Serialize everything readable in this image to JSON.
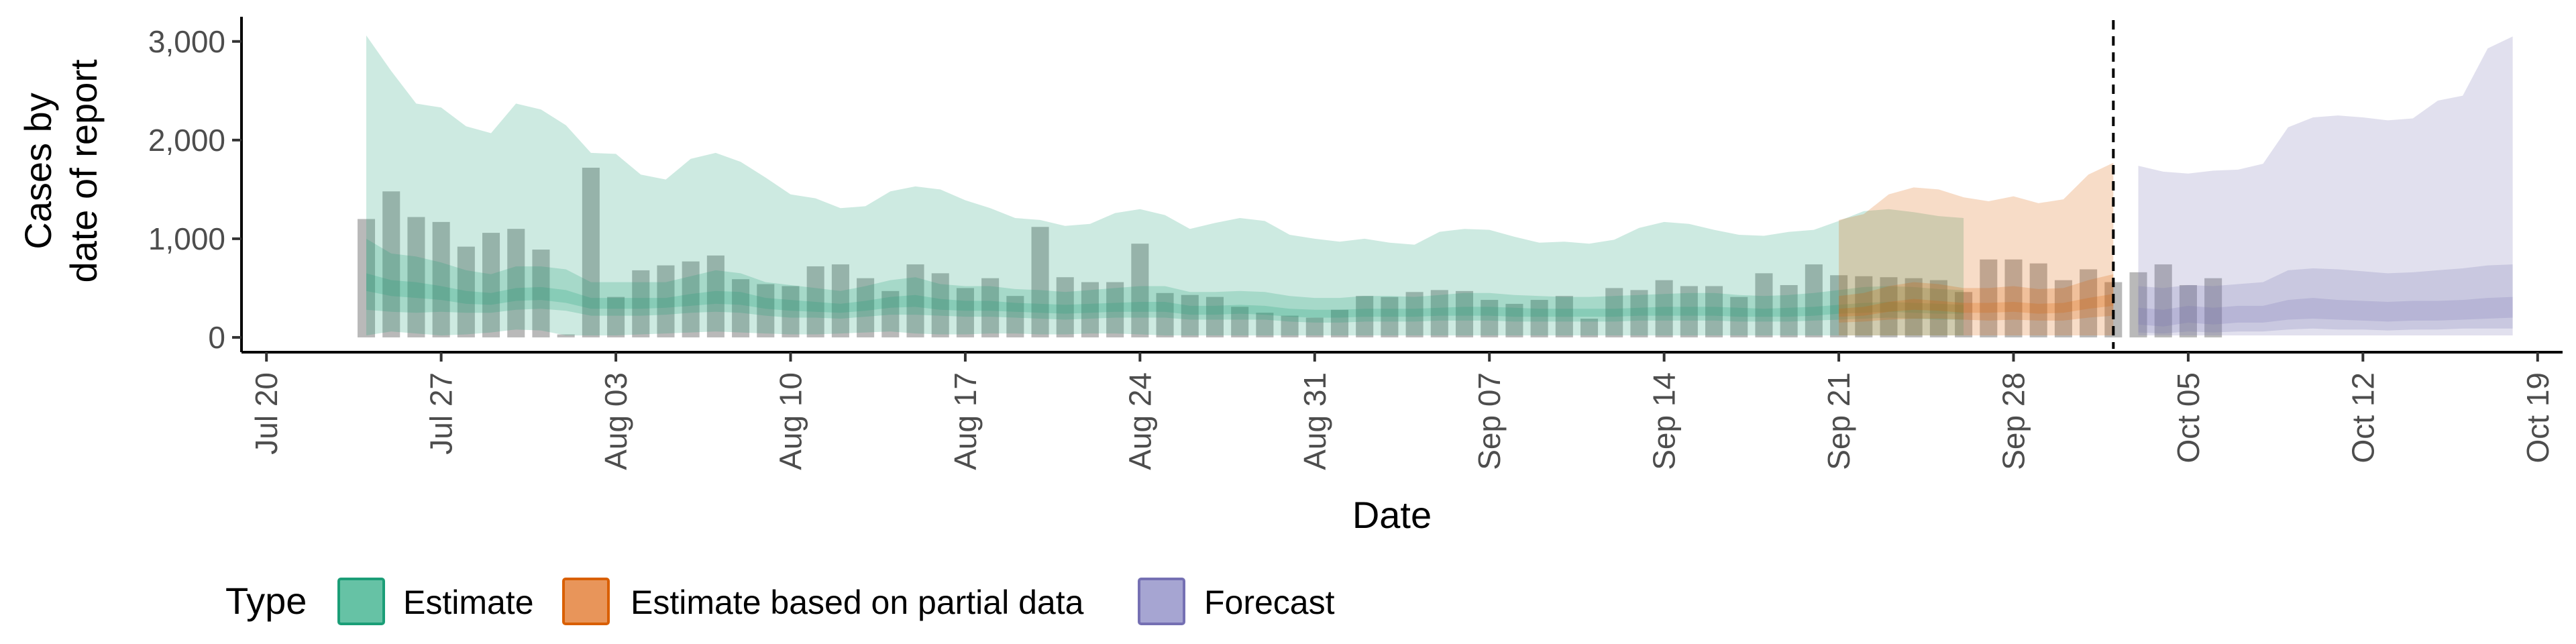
{
  "chart_data": {
    "type": "area",
    "xlabel": "Date",
    "ylabel_lines": [
      "Cases by",
      "date of report"
    ],
    "ylim": [
      -150,
      3250
    ],
    "xlim": [
      "2020-07-19",
      "2020-10-20"
    ],
    "y_ticks": [
      0,
      1000,
      2000,
      3000
    ],
    "y_tick_labels": [
      "0",
      "1,000",
      "2,000",
      "3,000"
    ],
    "x_ticks": [
      "2020-07-20",
      "2020-07-27",
      "2020-08-03",
      "2020-08-10",
      "2020-08-17",
      "2020-08-24",
      "2020-08-31",
      "2020-09-07",
      "2020-09-14",
      "2020-09-21",
      "2020-09-28",
      "2020-10-05",
      "2020-10-12",
      "2020-10-19"
    ],
    "x_tick_labels": [
      "Jul 20",
      "Jul 27",
      "Aug 03",
      "Aug 10",
      "Aug 17",
      "Aug 24",
      "Aug 31",
      "Sep 07",
      "Sep 14",
      "Sep 21",
      "Sep 28",
      "Oct 05",
      "Oct 12",
      "Oct 19"
    ],
    "grid": false,
    "legend": {
      "position": "bottom",
      "title": "Type",
      "entries": [
        {
          "label": "Estimate",
          "fill": "#66c2a5",
          "stroke": "#1b9e77"
        },
        {
          "label": "Estimate based on partial data",
          "fill": "#e8955a",
          "stroke": "#d95f02"
        },
        {
          "label": "Forecast",
          "fill": "#a6a5d2",
          "stroke": "#7570b3"
        }
      ]
    },
    "vline_date": "2020-10-02",
    "bars": {
      "color": "#7f7f7f",
      "start_date": "2020-07-24",
      "values": [
        1200,
        1480,
        1220,
        1170,
        920,
        1060,
        1100,
        890,
        30,
        1720,
        410,
        680,
        730,
        770,
        830,
        590,
        540,
        520,
        720,
        740,
        600,
        470,
        740,
        650,
        500,
        600,
        420,
        1120,
        610,
        560,
        560,
        950,
        450,
        430,
        410,
        310,
        250,
        220,
        200,
        280,
        420,
        410,
        460,
        480,
        470,
        380,
        340,
        380,
        420,
        190,
        500,
        480,
        580,
        520,
        520,
        410,
        650,
        530,
        740,
        630,
        620,
        610,
        600,
        580,
        460,
        790,
        790,
        750,
        580,
        690,
        560,
        660,
        740,
        530,
        600
      ]
    },
    "series": [
      {
        "name": "Estimate",
        "start_date": "2020-07-24",
        "color": "#1b9e77",
        "upper_90": [
          3060,
          2700,
          2370,
          2330,
          2140,
          2070,
          2370,
          2310,
          2150,
          1870,
          1860,
          1650,
          1600,
          1810,
          1870,
          1780,
          1620,
          1450,
          1410,
          1310,
          1330,
          1480,
          1530,
          1500,
          1390,
          1310,
          1210,
          1190,
          1130,
          1150,
          1260,
          1300,
          1240,
          1100,
          1160,
          1210,
          1180,
          1040,
          1000,
          970,
          1000,
          960,
          940,
          1070,
          1100,
          1090,
          1020,
          960,
          970,
          950,
          990,
          1110,
          1170,
          1150,
          1090,
          1040,
          1030,
          1070,
          1090,
          1180,
          1280,
          1300,
          1270,
          1230,
          1210
        ],
        "lower_90": [
          20,
          60,
          40,
          20,
          30,
          50,
          80,
          70,
          20,
          20,
          20,
          30,
          40,
          50,
          60,
          50,
          40,
          30,
          30,
          40,
          50,
          60,
          40,
          30,
          30,
          40,
          40,
          30,
          30,
          40,
          40,
          30,
          20,
          20,
          20,
          20,
          20,
          20,
          20,
          20,
          20,
          20,
          20,
          20,
          20,
          20,
          20,
          20,
          20,
          20,
          20,
          20,
          20,
          20,
          20,
          20,
          20,
          20,
          20,
          20,
          20,
          20,
          20,
          20,
          20
        ],
        "upper_50": [
          1000,
          850,
          820,
          760,
          680,
          640,
          720,
          720,
          690,
          560,
          560,
          560,
          560,
          620,
          680,
          650,
          560,
          530,
          500,
          470,
          520,
          580,
          610,
          540,
          520,
          520,
          490,
          480,
          460,
          480,
          500,
          520,
          520,
          460,
          460,
          470,
          460,
          420,
          400,
          400,
          420,
          420,
          410,
          430,
          450,
          450,
          430,
          420,
          410,
          410,
          420,
          430,
          440,
          450,
          450,
          430,
          420,
          430,
          450,
          480,
          510,
          520,
          510,
          490,
          480
        ],
        "lower_50": [
          280,
          260,
          250,
          260,
          250,
          250,
          280,
          290,
          270,
          220,
          220,
          220,
          230,
          250,
          260,
          250,
          220,
          200,
          200,
          190,
          210,
          230,
          230,
          220,
          210,
          210,
          200,
          190,
          180,
          190,
          200,
          200,
          200,
          180,
          180,
          180,
          180,
          160,
          150,
          150,
          160,
          160,
          160,
          170,
          170,
          170,
          160,
          160,
          160,
          160,
          160,
          170,
          170,
          170,
          170,
          160,
          160,
          160,
          170,
          180,
          190,
          200,
          190,
          180,
          180
        ],
        "upper_20": [
          650,
          580,
          560,
          520,
          470,
          450,
          500,
          510,
          480,
          400,
          400,
          400,
          400,
          440,
          470,
          460,
          400,
          380,
          360,
          340,
          370,
          410,
          430,
          390,
          370,
          370,
          350,
          340,
          330,
          340,
          350,
          360,
          360,
          320,
          320,
          330,
          320,
          290,
          280,
          280,
          290,
          290,
          290,
          300,
          310,
          310,
          300,
          290,
          290,
          290,
          290,
          300,
          310,
          310,
          310,
          300,
          290,
          300,
          310,
          330,
          350,
          360,
          350,
          340,
          330
        ],
        "lower_20": [
          470,
          420,
          400,
          380,
          340,
          330,
          370,
          380,
          350,
          290,
          290,
          290,
          300,
          320,
          340,
          330,
          290,
          270,
          260,
          250,
          270,
          300,
          310,
          280,
          270,
          270,
          260,
          250,
          240,
          250,
          260,
          260,
          260,
          230,
          230,
          240,
          230,
          210,
          200,
          200,
          210,
          210,
          210,
          220,
          220,
          220,
          210,
          210,
          210,
          210,
          210,
          220,
          220,
          220,
          220,
          210,
          210,
          210,
          220,
          240,
          250,
          260,
          250,
          240,
          240
        ]
      },
      {
        "name": "Estimate based on partial data",
        "start_date": "2020-09-21",
        "color": "#d95f02",
        "upper_90": [
          1190,
          1250,
          1450,
          1520,
          1500,
          1420,
          1380,
          1430,
          1360,
          1400,
          1650,
          1770
        ],
        "lower_90": [
          20,
          20,
          20,
          20,
          20,
          20,
          20,
          20,
          20,
          20,
          20,
          20
        ],
        "upper_50": [
          420,
          450,
          520,
          560,
          540,
          500,
          500,
          520,
          490,
          500,
          580,
          640
        ],
        "lower_50": [
          150,
          160,
          180,
          190,
          190,
          180,
          170,
          180,
          170,
          170,
          200,
          220
        ],
        "upper_20": [
          290,
          310,
          360,
          390,
          370,
          350,
          350,
          360,
          340,
          350,
          400,
          440
        ],
        "lower_20": [
          210,
          220,
          260,
          280,
          270,
          250,
          250,
          260,
          240,
          250,
          290,
          320
        ]
      },
      {
        "name": "Forecast",
        "start_date": "2020-10-03",
        "color": "#7570b3",
        "upper_90": [
          1740,
          1680,
          1660,
          1690,
          1700,
          1760,
          2130,
          2230,
          2250,
          2230,
          2200,
          2220,
          2400,
          2450,
          2930,
          3050
        ],
        "lower_90": [
          20,
          20,
          20,
          20,
          20,
          20,
          20,
          20,
          20,
          20,
          20,
          20,
          20,
          20,
          20,
          20
        ],
        "upper_50": [
          520,
          500,
          530,
          520,
          540,
          560,
          680,
          700,
          690,
          670,
          650,
          660,
          680,
          700,
          730,
          740
        ],
        "lower_50": [
          50,
          40,
          60,
          50,
          60,
          60,
          80,
          90,
          80,
          80,
          70,
          80,
          80,
          90,
          90,
          90
        ],
        "upper_20": [
          300,
          280,
          320,
          300,
          320,
          320,
          380,
          400,
          380,
          370,
          360,
          370,
          370,
          380,
          400,
          410
        ],
        "lower_20": [
          130,
          110,
          150,
          130,
          150,
          150,
          180,
          190,
          180,
          170,
          160,
          170,
          170,
          180,
          190,
          200
        ]
      }
    ]
  }
}
